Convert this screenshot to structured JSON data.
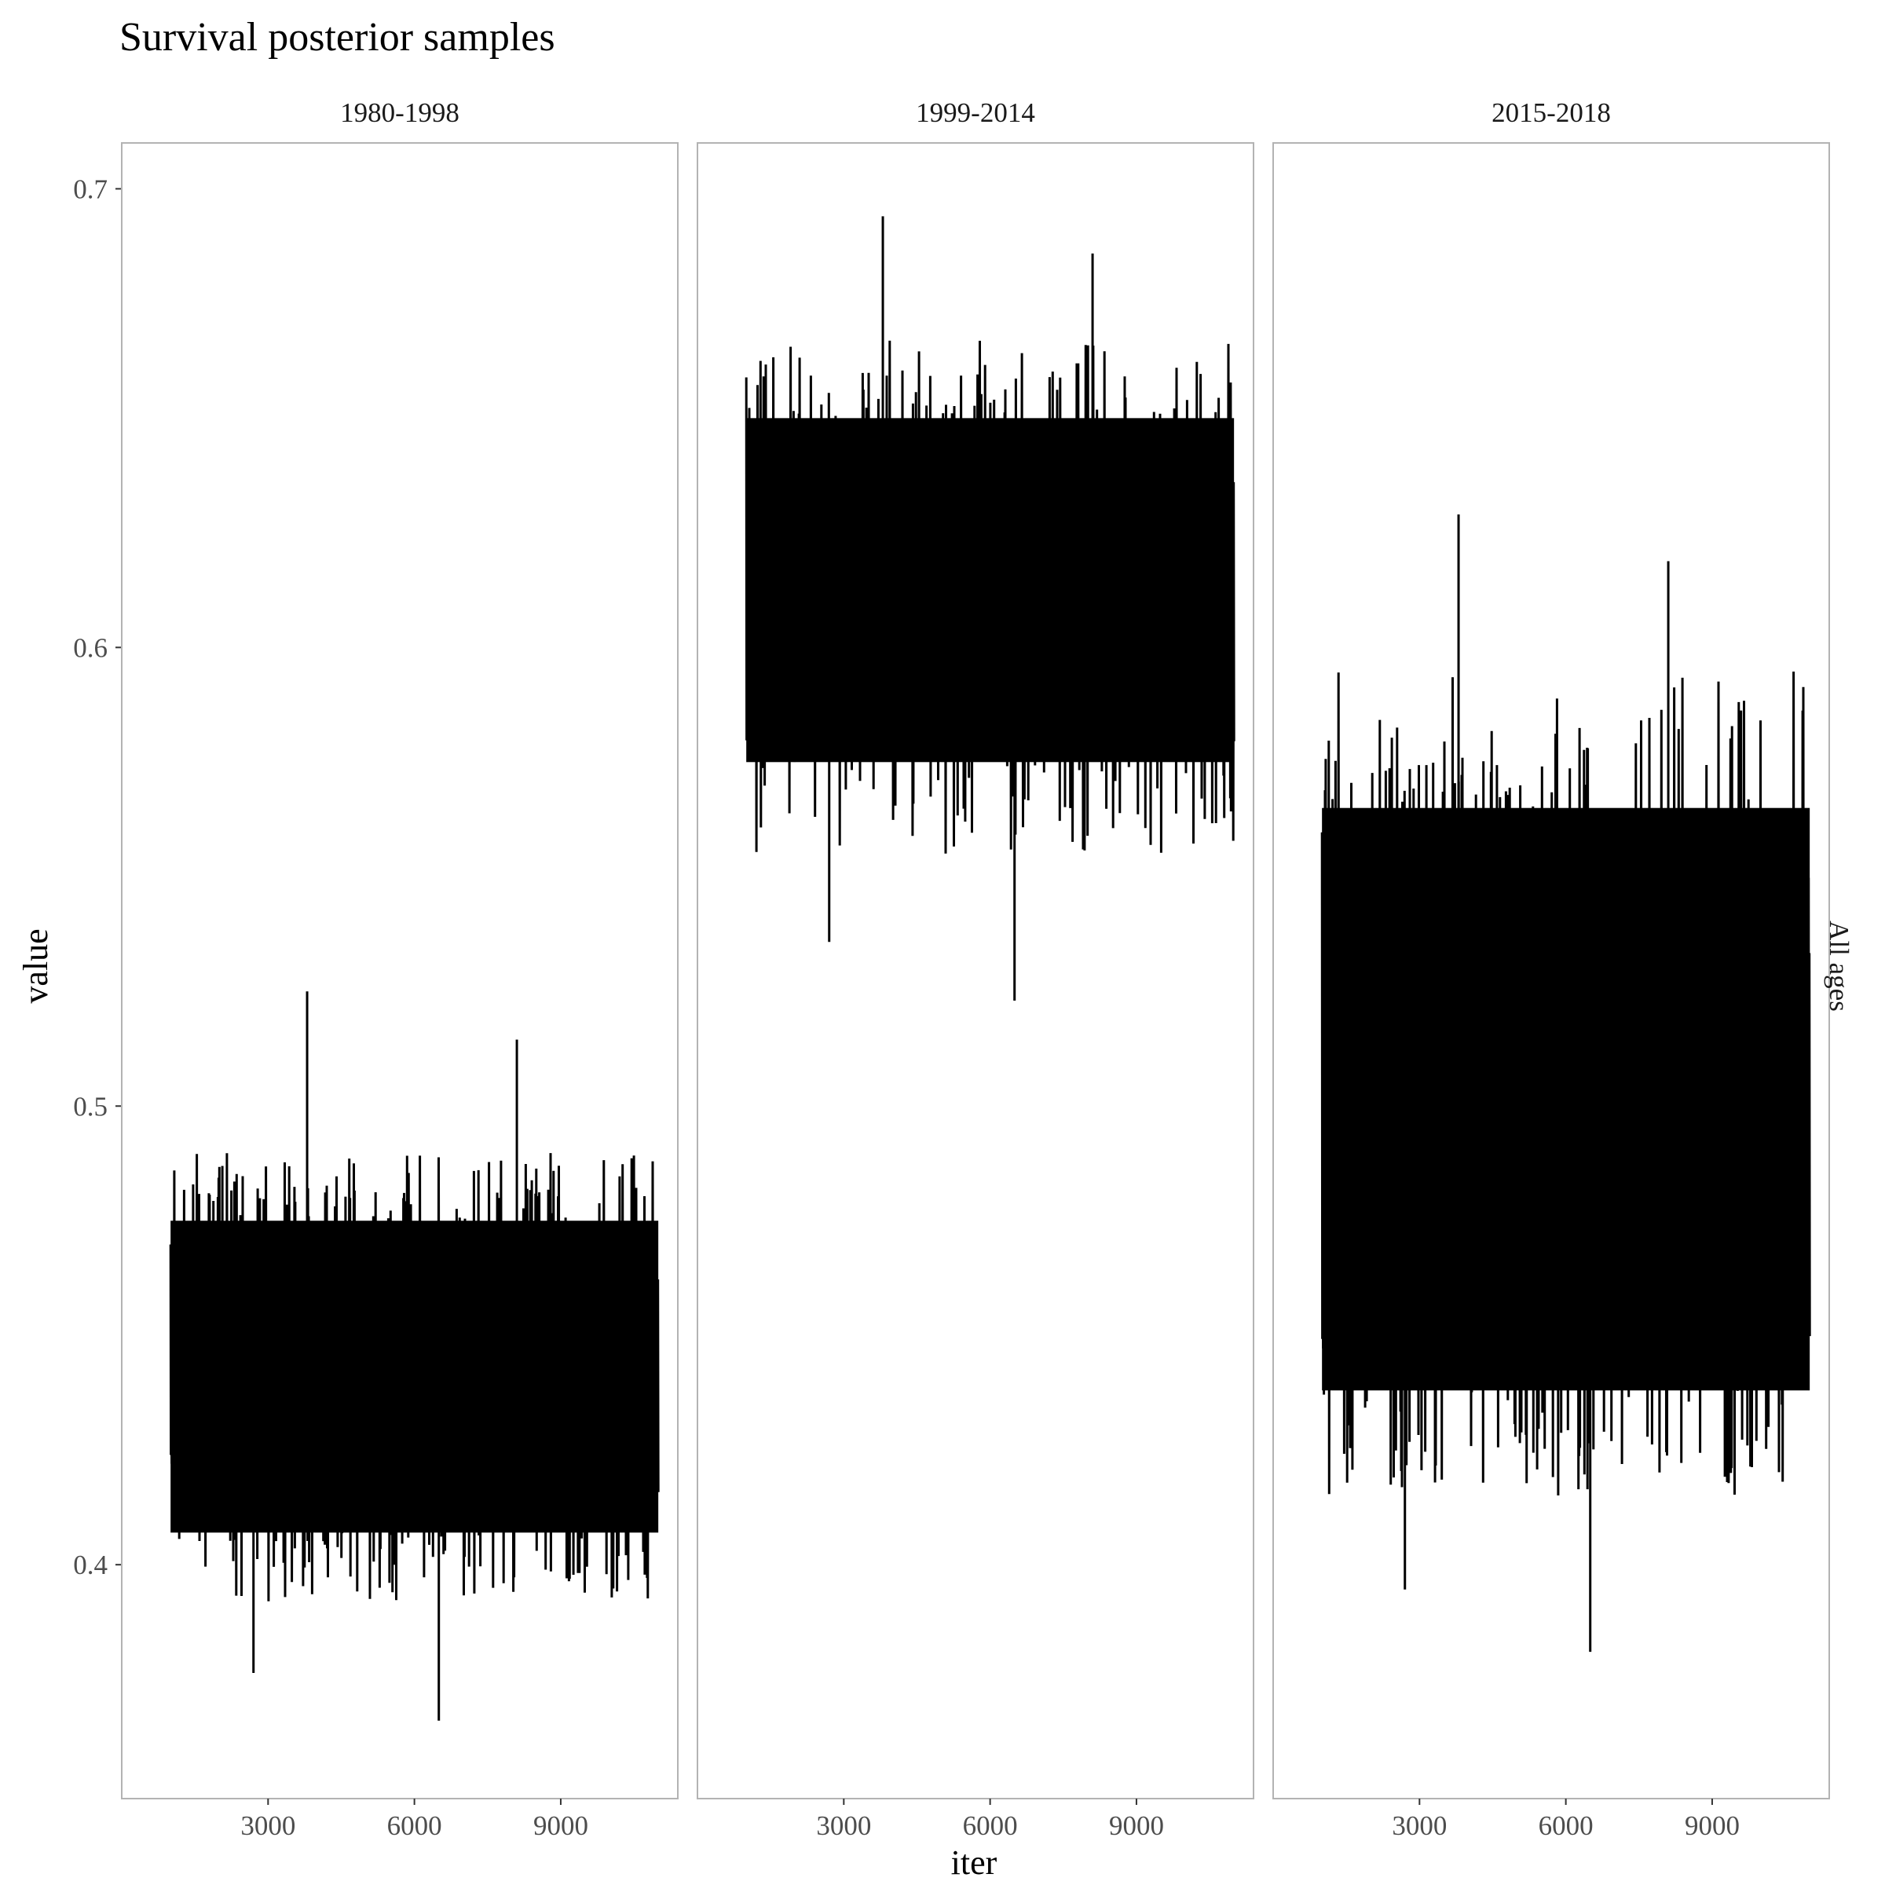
{
  "chart_data": {
    "type": "line",
    "title": "Survival posterior samples",
    "xlabel": "iter",
    "ylabel": "value",
    "row_label": "All ages",
    "x_range": [
      1001,
      11000
    ],
    "xlim": [
      0,
      11400
    ],
    "ylim": [
      0.349,
      0.71
    ],
    "x_ticks": [
      3000,
      6000,
      9000
    ],
    "y_ticks": [
      0.4,
      0.5,
      0.6,
      0.7
    ],
    "line_color": "#000000",
    "panel_border_color": "#b3b3b3",
    "grid": false,
    "panels": [
      {
        "label": "1980-1998",
        "band_low": 0.407,
        "band_high": 0.475,
        "typical_max": 0.49,
        "typical_min": 0.392,
        "extreme_max": 0.525,
        "extreme_min": 0.366
      },
      {
        "label": "1999-2014",
        "band_low": 0.575,
        "band_high": 0.65,
        "typical_max": 0.667,
        "typical_min": 0.555,
        "extreme_max": 0.694,
        "extreme_min": 0.523
      },
      {
        "label": "2015-2018",
        "band_low": 0.438,
        "band_high": 0.565,
        "typical_max": 0.595,
        "typical_min": 0.415,
        "extreme_max": 0.629,
        "extreme_min": 0.381
      }
    ]
  }
}
